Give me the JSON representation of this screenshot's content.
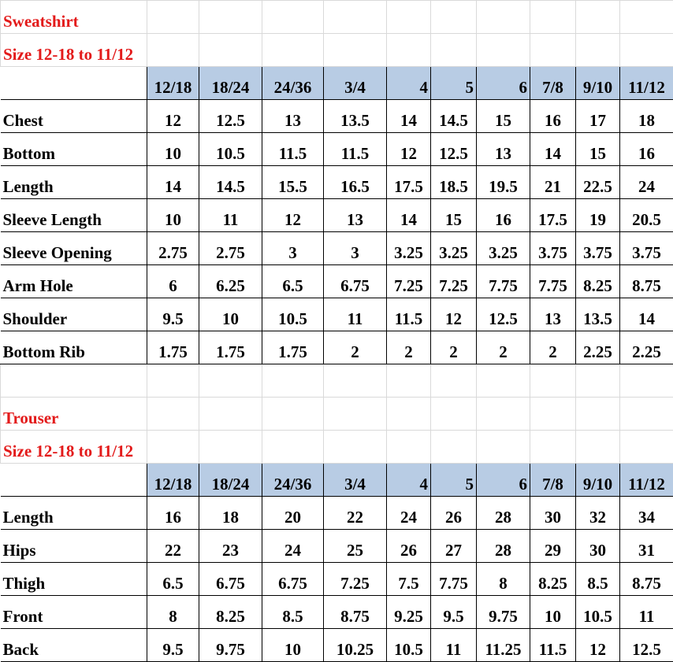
{
  "sheets": [
    {
      "title": "Sweatshirt",
      "subtitle": "Size 12-18 to 11/12",
      "sizes": [
        "12/18",
        "18/24",
        "24/36",
        "3/4",
        "4",
        "5",
        "6",
        "7/8",
        "9/10",
        "11/12"
      ],
      "rows": [
        {
          "label": "Chest",
          "values": [
            "12",
            "12.5",
            "13",
            "13.5",
            "14",
            "14.5",
            "15",
            "16",
            "17",
            "18"
          ]
        },
        {
          "label": "Bottom",
          "values": [
            "10",
            "10.5",
            "11.5",
            "11.5",
            "12",
            "12.5",
            "13",
            "14",
            "15",
            "16"
          ]
        },
        {
          "label": "Length",
          "values": [
            "14",
            "14.5",
            "15.5",
            "16.5",
            "17.5",
            "18.5",
            "19.5",
            "21",
            "22.5",
            "24"
          ]
        },
        {
          "label": "Sleeve Length",
          "values": [
            "10",
            "11",
            "12",
            "13",
            "14",
            "15",
            "16",
            "17.5",
            "19",
            "20.5"
          ]
        },
        {
          "label": "Sleeve Opening",
          "values": [
            "2.75",
            "2.75",
            "3",
            "3",
            "3.25",
            "3.25",
            "3.25",
            "3.75",
            "3.75",
            "3.75"
          ]
        },
        {
          "label": "Arm Hole",
          "values": [
            "6",
            "6.25",
            "6.5",
            "6.75",
            "7.25",
            "7.25",
            "7.75",
            "7.75",
            "8.25",
            "8.75"
          ]
        },
        {
          "label": "Shoulder",
          "values": [
            "9.5",
            "10",
            "10.5",
            "11",
            "11.5",
            "12",
            "12.5",
            "13",
            "13.5",
            "14"
          ]
        },
        {
          "label": "Bottom Rib",
          "values": [
            "1.75",
            "1.75",
            "1.75",
            "2",
            "2",
            "2",
            "2",
            "2",
            "2.25",
            "2.25"
          ]
        }
      ]
    },
    {
      "title": "Trouser",
      "subtitle": "Size 12-18 to 11/12",
      "sizes": [
        "12/18",
        "18/24",
        "24/36",
        "3/4",
        "4",
        "5",
        "6",
        "7/8",
        "9/10",
        "11/12"
      ],
      "rows": [
        {
          "label": "Length",
          "values": [
            "16",
            "18",
            "20",
            "22",
            "24",
            "26",
            "28",
            "30",
            "32",
            "34"
          ]
        },
        {
          "label": "Hips",
          "values": [
            "22",
            "23",
            "24",
            "25",
            "26",
            "27",
            "28",
            "29",
            "30",
            "31"
          ]
        },
        {
          "label": "Thigh",
          "values": [
            "6.5",
            "6.75",
            "6.75",
            "7.25",
            "7.5",
            "7.75",
            "8",
            "8.25",
            "8.5",
            "8.75"
          ]
        },
        {
          "label": "Front",
          "values": [
            "8",
            "8.25",
            "8.5",
            "8.75",
            "9.25",
            "9.5",
            "9.75",
            "10",
            "10.5",
            "11"
          ]
        },
        {
          "label": "Back",
          "values": [
            "9.5",
            "9.75",
            "10",
            "10.25",
            "10.5",
            "11",
            "11.25",
            "11.5",
            "12",
            "12.5"
          ]
        }
      ]
    }
  ],
  "colors": {
    "title": "#e31a1a",
    "header_fill": "#b8cce4"
  }
}
